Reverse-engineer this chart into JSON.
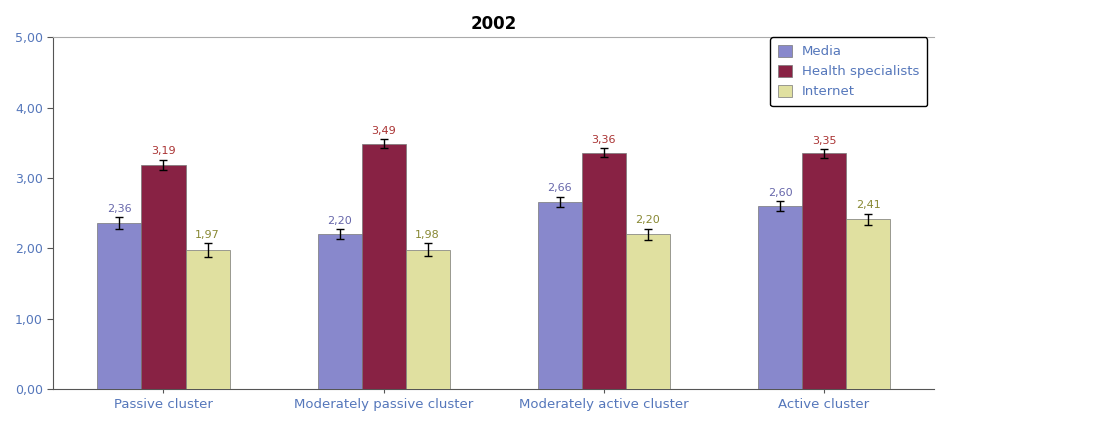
{
  "title": "2002",
  "categories": [
    "Passive cluster",
    "Moderately passive cluster",
    "Moderately active cluster",
    "Active cluster"
  ],
  "series": [
    {
      "name": "Media",
      "values": [
        2.36,
        2.2,
        2.66,
        2.6
      ],
      "errors": [
        0.08,
        0.07,
        0.07,
        0.07
      ],
      "color": "#8888cc"
    },
    {
      "name": "Health specialists",
      "values": [
        3.19,
        3.49,
        3.36,
        3.35
      ],
      "errors": [
        0.07,
        0.06,
        0.06,
        0.06
      ],
      "color": "#882244"
    },
    {
      "name": "Internet",
      "values": [
        1.97,
        1.98,
        2.2,
        2.41
      ],
      "errors": [
        0.1,
        0.09,
        0.08,
        0.08
      ],
      "color": "#e0e0a0"
    }
  ],
  "ylim": [
    0,
    5.0
  ],
  "yticks": [
    0.0,
    1.0,
    2.0,
    3.0,
    4.0,
    5.0
  ],
  "ytick_labels": [
    "0,00",
    "1,00",
    "2,00",
    "3,00",
    "4,00",
    "5,00"
  ],
  "label_color_media": "#6666aa",
  "label_color_health": "#aa3333",
  "label_color_internet": "#888833",
  "xlabel_color": "#5577bb",
  "ytick_color": "#5577bb",
  "background_color": "#ffffff",
  "bar_width": 0.2,
  "legend_text_color": "#5577bb"
}
